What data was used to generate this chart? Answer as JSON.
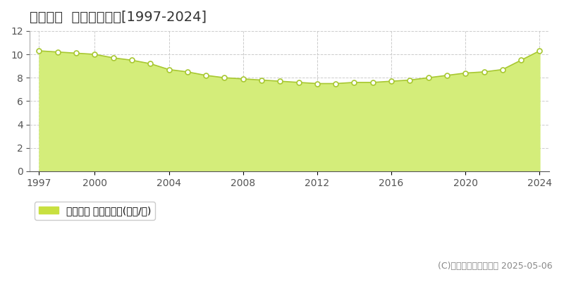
{
  "title": "富良野市  基準地価推移[1997-2024]",
  "years": [
    1997,
    1998,
    1999,
    2000,
    2001,
    2002,
    2003,
    2004,
    2005,
    2006,
    2007,
    2008,
    2009,
    2010,
    2011,
    2012,
    2013,
    2014,
    2015,
    2016,
    2017,
    2018,
    2019,
    2020,
    2021,
    2022,
    2023,
    2024
  ],
  "values": [
    10.3,
    10.2,
    10.1,
    10.0,
    9.7,
    9.5,
    9.2,
    8.7,
    8.5,
    8.2,
    8.0,
    7.9,
    7.8,
    7.7,
    7.6,
    7.5,
    7.5,
    7.6,
    7.6,
    7.7,
    7.8,
    8.0,
    8.2,
    8.4,
    8.5,
    8.7,
    9.5,
    10.3
  ],
  "ylim": [
    0,
    12
  ],
  "yticks": [
    0,
    2,
    4,
    6,
    8,
    10,
    12
  ],
  "xticks": [
    1997,
    2000,
    2004,
    2008,
    2012,
    2016,
    2020,
    2024
  ],
  "fill_color": "#d4ed7a",
  "line_color": "#a8c832",
  "marker_color": "#ffffff",
  "marker_edge_color": "#a8c832",
  "grid_color": "#cccccc",
  "vgrid_color": "#cccccc",
  "background_color": "#ffffff",
  "legend_label": "基準地価 平均坪単価(万円/坪)",
  "legend_square_color": "#c8e040",
  "copyright_text": "(C)土地価格ドットコム 2025-05-06",
  "title_fontsize": 14,
  "axis_fontsize": 10,
  "legend_fontsize": 10,
  "copyright_fontsize": 9
}
